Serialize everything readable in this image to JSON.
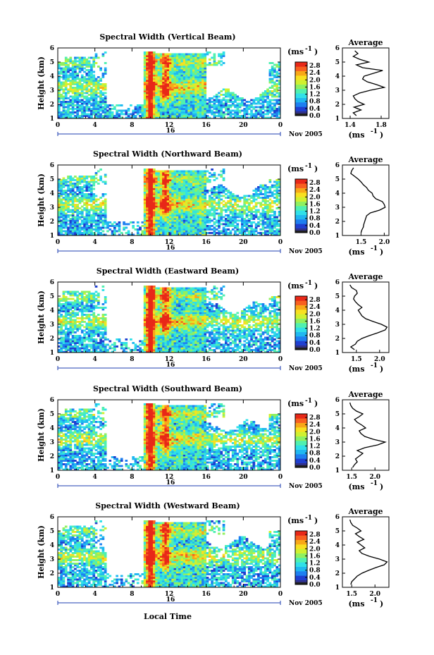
{
  "figure": {
    "xlabel": "Local Time",
    "ylabel": "Height (km)",
    "unit": "(ms",
    "unit_exp": "-1",
    "avg_title": "Average",
    "day": "16",
    "month_year": "Nov 2005",
    "colors": {
      "scale": [
        "#30318a",
        "#1f3fd0",
        "#1e7ff0",
        "#20b8f0",
        "#30e0e8",
        "#50f0b0",
        "#90f060",
        "#d0f030",
        "#f8e020",
        "#f8a818",
        "#f86020",
        "#e82818"
      ],
      "bottom_band": "#202020"
    }
  },
  "chart_data": [
    {
      "type": "heatmap",
      "title": "Spectral Width (Vertical Beam)",
      "x_ticks": [
        "0",
        "4",
        "8",
        "12",
        "16",
        "20",
        "0"
      ],
      "y_ticks": [
        "1",
        "2",
        "3",
        "4",
        "5",
        "6"
      ],
      "xlim": [
        0,
        24
      ],
      "ylim": [
        1,
        6
      ],
      "colorbar_ticks": [
        "0.0",
        "0.4",
        "0.8",
        "1.2",
        "1.6",
        "2.0",
        "2.4",
        "2.8"
      ],
      "colorbar_range": [
        0,
        3.0
      ],
      "average_profile": {
        "x_ticks": [
          "1.4",
          "1.8"
        ],
        "xlim": [
          1.3,
          1.9
        ],
        "ylim": [
          1,
          6
        ],
        "height": [
          1.2,
          1.4,
          1.6,
          1.8,
          2.0,
          2.2,
          2.4,
          2.6,
          2.8,
          3.0,
          3.2,
          3.4,
          3.6,
          3.8,
          4.0,
          4.2,
          4.4,
          4.6,
          4.8,
          5.0,
          5.2,
          5.4,
          5.6,
          5.8
        ],
        "value": [
          1.48,
          1.44,
          1.54,
          1.45,
          1.58,
          1.5,
          1.46,
          1.44,
          1.52,
          1.66,
          1.84,
          1.74,
          1.62,
          1.56,
          1.58,
          1.7,
          1.82,
          1.56,
          1.48,
          1.64,
          1.52,
          1.44,
          1.5,
          1.46
        ]
      }
    },
    {
      "type": "heatmap",
      "title": "Spectral Width (Northward Beam)",
      "x_ticks": [
        "0",
        "4",
        "8",
        "12",
        "16",
        "20",
        "0"
      ],
      "y_ticks": [
        "1",
        "2",
        "3",
        "4",
        "5",
        "6"
      ],
      "xlim": [
        0,
        24
      ],
      "ylim": [
        1,
        6
      ],
      "colorbar_ticks": [
        "0.0",
        "0.4",
        "0.8",
        "1.2",
        "1.6",
        "2.0",
        "2.4",
        "2.8"
      ],
      "colorbar_range": [
        0,
        3.0
      ],
      "average_profile": {
        "x_ticks": [
          "1.5",
          "2.0"
        ],
        "xlim": [
          1.1,
          2.1
        ],
        "ylim": [
          1,
          6
        ],
        "height": [
          1.2,
          1.4,
          1.6,
          1.8,
          2.0,
          2.2,
          2.4,
          2.6,
          2.8,
          3.0,
          3.2,
          3.4,
          3.6,
          3.8,
          4.0,
          4.2,
          4.4,
          4.6,
          4.8,
          5.0,
          5.2,
          5.4,
          5.6,
          5.8
        ],
        "value": [
          1.5,
          1.52,
          1.55,
          1.56,
          1.58,
          1.6,
          1.62,
          1.7,
          1.9,
          2.02,
          2.0,
          1.96,
          1.82,
          1.76,
          1.74,
          1.66,
          1.62,
          1.55,
          1.5,
          1.44,
          1.36,
          1.28,
          1.3,
          1.34
        ]
      }
    },
    {
      "type": "heatmap",
      "title": "Spectral Width (Eastward Beam)",
      "x_ticks": [
        "0",
        "4",
        "8",
        "12",
        "16",
        "20",
        "0"
      ],
      "y_ticks": [
        "1",
        "2",
        "3",
        "4",
        "5",
        "6"
      ],
      "xlim": [
        0,
        24
      ],
      "ylim": [
        1,
        6
      ],
      "colorbar_ticks": [
        "0.0",
        "0.4",
        "0.8",
        "1.2",
        "1.6",
        "2.0",
        "2.4",
        "2.8"
      ],
      "colorbar_range": [
        0,
        3.0
      ],
      "average_profile": {
        "x_ticks": [
          "1.5",
          "2.0"
        ],
        "xlim": [
          1.2,
          2.2
        ],
        "ylim": [
          1,
          6
        ],
        "height": [
          1.2,
          1.4,
          1.6,
          1.8,
          2.0,
          2.2,
          2.4,
          2.6,
          2.8,
          3.0,
          3.2,
          3.4,
          3.6,
          3.8,
          4.0,
          4.2,
          4.4,
          4.6,
          4.8,
          5.0,
          5.2,
          5.4,
          5.6,
          5.8
        ],
        "value": [
          1.46,
          1.38,
          1.48,
          1.52,
          1.62,
          1.78,
          1.96,
          2.12,
          2.16,
          2.04,
          1.86,
          1.7,
          1.62,
          1.58,
          1.54,
          1.62,
          1.54,
          1.48,
          1.44,
          1.46,
          1.52,
          1.5,
          1.4,
          1.36
        ]
      }
    },
    {
      "type": "heatmap",
      "title": "Spectral Width (Southward Beam)",
      "x_ticks": [
        "0",
        "4",
        "8",
        "12",
        "16",
        "20",
        "0"
      ],
      "y_ticks": [
        "1",
        "2",
        "3",
        "4",
        "5",
        "6"
      ],
      "xlim": [
        0,
        24
      ],
      "ylim": [
        1,
        6
      ],
      "colorbar_ticks": [
        "0.0",
        "0.4",
        "0.8",
        "1.2",
        "1.6",
        "2.0",
        "2.4",
        "2.8"
      ],
      "colorbar_range": [
        0,
        3.0
      ],
      "average_profile": {
        "x_ticks": [
          "1.5",
          "2.0"
        ],
        "xlim": [
          1.3,
          2.3
        ],
        "ylim": [
          1,
          6
        ],
        "height": [
          1.2,
          1.4,
          1.6,
          1.8,
          2.0,
          2.2,
          2.4,
          2.6,
          2.8,
          3.0,
          3.2,
          3.4,
          3.6,
          3.8,
          4.0,
          4.2,
          4.4,
          4.6,
          4.8,
          5.0,
          5.2,
          5.4,
          5.6,
          5.8
        ],
        "value": [
          1.52,
          1.56,
          1.62,
          1.58,
          1.66,
          1.74,
          1.62,
          1.78,
          2.06,
          2.22,
          1.96,
          1.78,
          1.7,
          1.66,
          1.8,
          1.72,
          1.62,
          1.56,
          1.66,
          1.74,
          1.6,
          1.52,
          1.48,
          1.46
        ]
      }
    },
    {
      "type": "heatmap",
      "title": "Spectral Width (Westward Beam)",
      "x_ticks": [
        "0",
        "4",
        "8",
        "12",
        "16",
        "20",
        "0"
      ],
      "y_ticks": [
        "1",
        "2",
        "3",
        "4",
        "5",
        "6"
      ],
      "xlim": [
        0,
        24
      ],
      "ylim": [
        1,
        6
      ],
      "colorbar_ticks": [
        "0.0",
        "0.4",
        "0.8",
        "1.2",
        "1.6",
        "2.0",
        "2.4",
        "2.8"
      ],
      "colorbar_range": [
        0,
        3.0
      ],
      "average_profile": {
        "x_ticks": [
          "1.5",
          "2.0"
        ],
        "xlim": [
          1.3,
          2.3
        ],
        "ylim": [
          1,
          6
        ],
        "height": [
          1.2,
          1.4,
          1.6,
          1.8,
          2.0,
          2.2,
          2.4,
          2.6,
          2.8,
          3.0,
          3.2,
          3.4,
          3.6,
          3.8,
          4.0,
          4.2,
          4.4,
          4.6,
          4.8,
          5.0,
          5.2,
          5.4,
          5.6,
          5.8
        ],
        "value": [
          1.48,
          1.5,
          1.56,
          1.62,
          1.72,
          1.86,
          2.02,
          2.2,
          2.26,
          2.1,
          1.88,
          1.72,
          1.66,
          1.78,
          1.7,
          1.62,
          1.76,
          1.66,
          1.58,
          1.7,
          1.62,
          1.52,
          1.48,
          1.46
        ]
      }
    }
  ]
}
